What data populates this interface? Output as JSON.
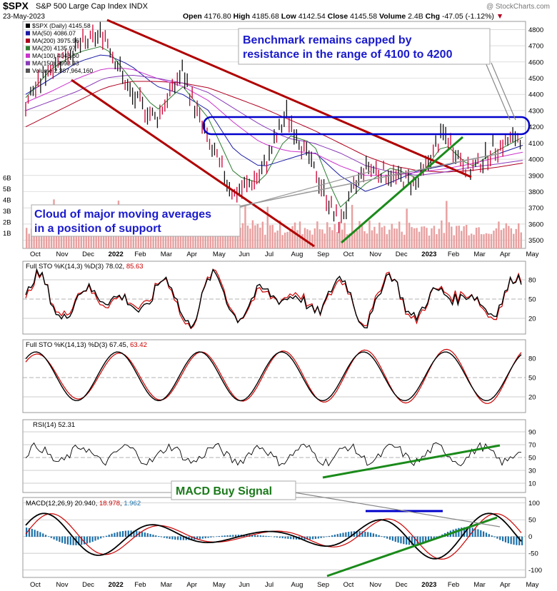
{
  "header": {
    "symbol": "$SPX",
    "name": "S&P 500 Large Cap Index",
    "exchange": "INDX",
    "date": "23-May-2023",
    "open_label": "Open",
    "open": "4176.80",
    "high_label": "High",
    "high": "4185.68",
    "low_label": "Low",
    "low": "4142.54",
    "close_label": "Close",
    "close": "4145.58",
    "volume_label": "Volume",
    "volume": "2.4B",
    "chg_label": "Chg",
    "chg": "-47.05 (-1.12%)",
    "watermark": "@ StockCharts.com"
  },
  "colors": {
    "price_up": "#111111",
    "price_down": "#cc0033",
    "ma50": "#1a1aa6",
    "ma200": "#b00020",
    "ma20": "#2e7d32",
    "ma100": "#cc33cc",
    "ma150": "#8a3ab9",
    "annotation_text": "#1a1acc",
    "macd_signal_text": "#1a7a1a",
    "trend_red": "#b00000",
    "trend_green": "#1a8a1a",
    "channel": "#0000cc",
    "volume": "#e8a0a0",
    "stoch_d": "#cc0000",
    "macd_hist": "#1b6fa8",
    "gridline": "#c8c8c8"
  },
  "legend": [
    {
      "label": "$SPX (Daily)",
      "value": "4145.58"
    },
    {
      "label": "MA(50)",
      "value": "4086.07"
    },
    {
      "label": "MA(200)",
      "value": "3975.96"
    },
    {
      "label": "MA(20)",
      "value": "4135.97"
    },
    {
      "label": "MA(100)",
      "value": "4043.60"
    },
    {
      "label": "MA(150)",
      "value": "3993.33"
    },
    {
      "label": "Volume",
      "value": "2,387,964,160"
    }
  ],
  "annotations": {
    "benchmark": [
      "Benchmark remains capped by",
      "resistance in the range of 4100 to 4200"
    ],
    "cloud": [
      "Cloud of major moving averages",
      "in a position of support"
    ],
    "macd_buy": "MACD Buy Signal"
  },
  "x_axis": {
    "labels": [
      "Oct",
      "Nov",
      "Dec",
      "2022",
      "Feb",
      "Mar",
      "Apr",
      "May",
      "Jun",
      "Jul",
      "Aug",
      "Sep",
      "Oct",
      "Nov",
      "Dec",
      "2023",
      "Feb",
      "Mar",
      "Apr",
      "May"
    ],
    "bold": [
      "2022",
      "2023"
    ]
  },
  "panels": [
    {
      "title": "Full STO %K(14,3) %D(3)",
      "k_value": "78.02",
      "d_value": "85.63",
      "ticks": [
        "80",
        "50",
        "20"
      ]
    },
    {
      "title": "Full STO %K(14,13) %D(3)",
      "k_value": "67.45",
      "d_value": "63.42",
      "ticks": [
        "80",
        "50",
        "20"
      ]
    },
    {
      "title": "RSI(14)",
      "value": "52.31",
      "ticks": [
        "90",
        "70",
        "50",
        "30",
        "10"
      ]
    },
    {
      "title": "MACD(12,26,9)",
      "macd_value": "20.940",
      "signal_value": "18.978",
      "hist_value": "1.962",
      "ticks": [
        "100",
        "50",
        "0",
        "-50",
        "-100"
      ]
    }
  ],
  "chart_data": {
    "type": "line",
    "title": "S&P 500 Large Cap Index (Daily)",
    "price_axis": {
      "ylim": [
        3450,
        4850
      ],
      "ticks": [
        3500,
        3600,
        3700,
        3800,
        3900,
        4000,
        4100,
        4200,
        4300,
        4400,
        4500,
        4600,
        4700,
        4800
      ]
    },
    "volume_axis_ticks": [
      "1B",
      "2B",
      "3B",
      "4B",
      "5B",
      "6B"
    ],
    "price_series": {
      "x": [
        "Oct",
        "Nov",
        "Dec",
        "2022",
        "Feb",
        "Mar",
        "Apr",
        "May",
        "Jun",
        "Jul",
        "Aug",
        "Sep",
        "Oct",
        "Nov",
        "Dec",
        "2023",
        "Feb",
        "Mar",
        "Apr",
        "May"
      ],
      "close": [
        4350,
        4580,
        4690,
        4780,
        4400,
        4250,
        4540,
        4100,
        3780,
        3900,
        4280,
        3950,
        3600,
        3960,
        3900,
        3850,
        4160,
        3920,
        4070,
        4145.58
      ]
    },
    "resistance_band": [
      4100,
      4200
    ],
    "series": [
      {
        "name": "MA(50)",
        "values": [
          4400,
          4500,
          4600,
          4650,
          4580,
          4450,
          4400,
          4300,
          4050,
          3950,
          4000,
          4050,
          3900,
          3800,
          3860,
          3930,
          3960,
          4000,
          4030,
          4086.07
        ]
      },
      {
        "name": "MA(200)",
        "values": [
          4200,
          4280,
          4360,
          4440,
          4480,
          4480,
          4470,
          4440,
          4380,
          4320,
          4250,
          4180,
          4100,
          4020,
          3960,
          3930,
          3920,
          3930,
          3950,
          3975.96
        ]
      },
      {
        "name": "MA(20)",
        "values": [
          4380,
          4560,
          4660,
          4700,
          4500,
          4300,
          4450,
          4250,
          3900,
          3850,
          4150,
          4100,
          3700,
          3850,
          3950,
          3880,
          4100,
          3950,
          4050,
          4135.97
        ]
      },
      {
        "name": "MA(100)",
        "values": [
          4350,
          4420,
          4500,
          4560,
          4560,
          4500,
          4450,
          4360,
          4220,
          4100,
          4050,
          4040,
          3960,
          3900,
          3900,
          3920,
          3940,
          3970,
          4010,
          4043.6
        ]
      },
      {
        "name": "MA(150)",
        "values": [
          4300,
          4360,
          4420,
          4500,
          4520,
          4500,
          4470,
          4410,
          4310,
          4210,
          4130,
          4100,
          4040,
          3960,
          3920,
          3900,
          3920,
          3950,
          3970,
          3993.33
        ]
      }
    ]
  }
}
